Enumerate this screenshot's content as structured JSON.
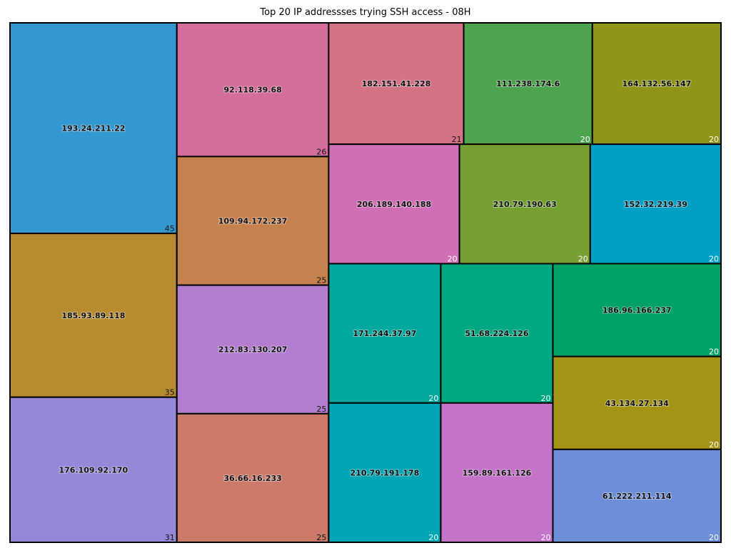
{
  "chart_data": {
    "type": "treemap",
    "title": "Top 20 IP addressses trying SSH access - 08H",
    "items": [
      {
        "label": "193.24.211.22",
        "value": 45,
        "color": "#3498d0"
      },
      {
        "label": "185.93.89.118",
        "value": 35,
        "color": "#b78c30"
      },
      {
        "label": "176.109.92.170",
        "value": 31,
        "color": "#9688d8"
      },
      {
        "label": "92.118.39.68",
        "value": 26,
        "color": "#d66e9c"
      },
      {
        "label": "109.94.172.237",
        "value": 25,
        "color": "#c6824e"
      },
      {
        "label": "212.83.130.207",
        "value": 25,
        "color": "#b37ed0"
      },
      {
        "label": "36.66.16.233",
        "value": 25,
        "color": "#cc7a6a"
      },
      {
        "label": "182.151.41.228",
        "value": 21,
        "color": "#d47286"
      },
      {
        "label": "111.238.174.6",
        "value": 20,
        "color": "#4da34e"
      },
      {
        "label": "164.132.56.147",
        "value": 20,
        "color": "#8f9518"
      },
      {
        "label": "206.189.140.188",
        "value": 20,
        "color": "#d06eb6"
      },
      {
        "label": "210.79.190.63",
        "value": 20,
        "color": "#77a033"
      },
      {
        "label": "152.32.219.39",
        "value": 20,
        "color": "#00a0c6"
      },
      {
        "label": "171.244.37.97",
        "value": 20,
        "color": "#00a89e"
      },
      {
        "label": "210.79.191.178",
        "value": 20,
        "color": "#00a6b4"
      },
      {
        "label": "51.68.224.126",
        "value": 20,
        "color": "#00a882"
      },
      {
        "label": "159.89.161.126",
        "value": 20,
        "color": "#c474c8"
      },
      {
        "label": "186.96.166.237",
        "value": 20,
        "color": "#00a266"
      },
      {
        "label": "43.134.27.134",
        "value": 20,
        "color": "#a59315"
      },
      {
        "label": "61.222.211.114",
        "value": 20,
        "color": "#6e8ed8"
      }
    ]
  }
}
